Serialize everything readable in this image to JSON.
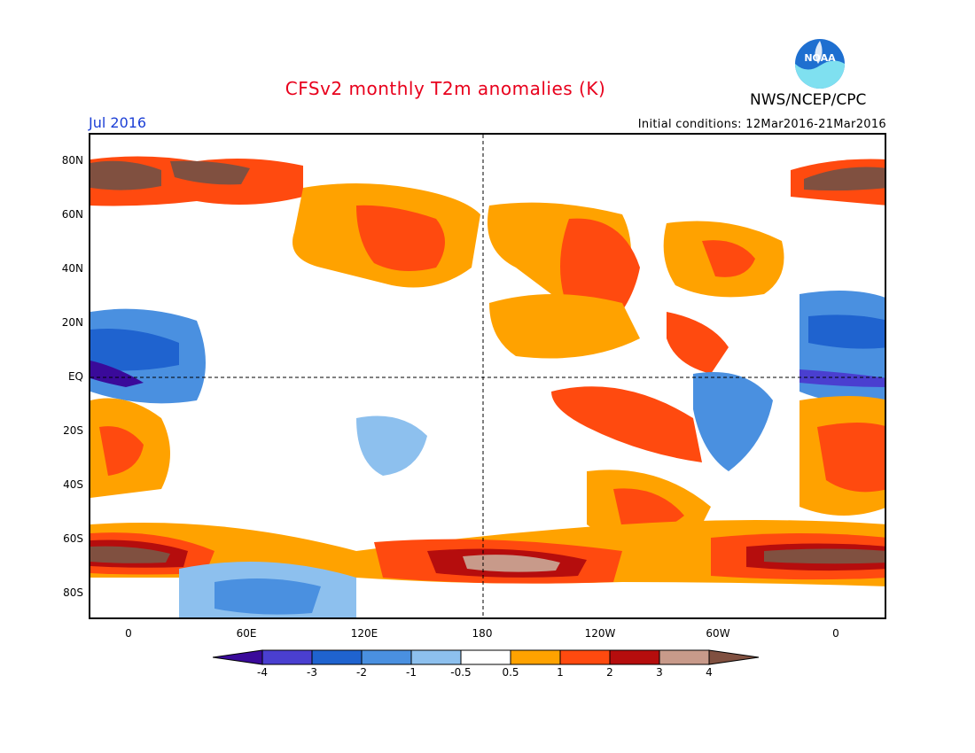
{
  "header": {
    "title": "CFSv2 monthly T2m anomalies (K)",
    "agency": "NWS/NCEP/CPC",
    "date": "Jul 2016",
    "initial_conditions": "Initial conditions: 12Mar2016-21Mar2016",
    "logo_text": "NOAA"
  },
  "axes": {
    "lat_labels": [
      "80N",
      "60N",
      "40N",
      "20N",
      "EQ",
      "20S",
      "40S",
      "60S",
      "80S"
    ],
    "lon_labels": [
      "0",
      "60E",
      "120E",
      "180",
      "120W",
      "60W",
      "0"
    ]
  },
  "colorbar": {
    "labels": [
      "-4",
      "-3",
      "-2",
      "-1",
      "-0.5",
      "0.5",
      "1",
      "2",
      "3",
      "4"
    ],
    "colors": [
      "#3a0a9a",
      "#4a3fd0",
      "#1f63cf",
      "#4a90e0",
      "#8dc0ee",
      "#ffffff",
      "#ffa200",
      "#ff4a0f",
      "#b50d0d",
      "#c89a8a",
      "#805040"
    ],
    "map_colors": {
      "ocean_background": "#ffffff",
      "grid": "#000000"
    }
  }
}
